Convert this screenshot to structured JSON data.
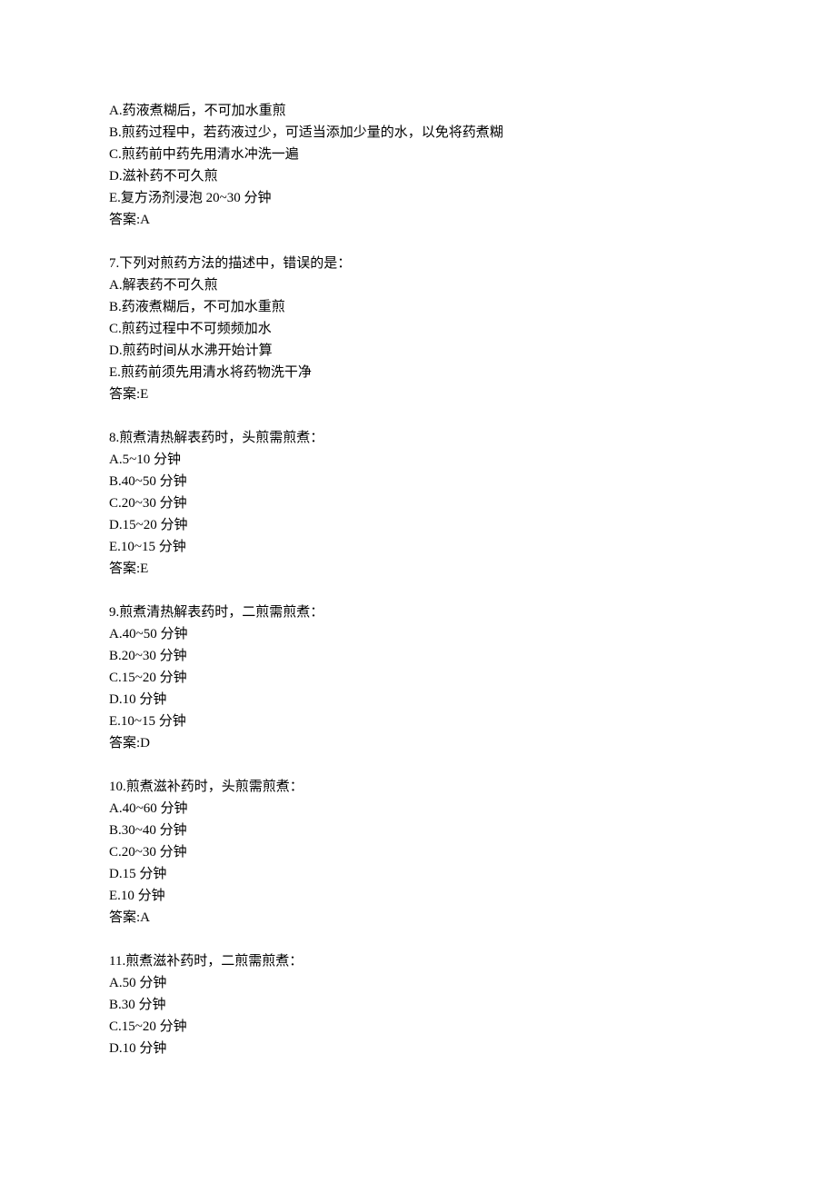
{
  "text_color": "#000000",
  "background_color": "#ffffff",
  "font_size": 15,
  "line_height": 24,
  "blocks": [
    {
      "lines": [
        "A.药液煮糊后，不可加水重煎",
        "B.煎药过程中，若药液过少，可适当添加少量的水，以免将药煮糊",
        "C.煎药前中药先用清水冲洗一遍",
        "D.滋补药不可久煎",
        "E.复方汤剂浸泡 20~30 分钟",
        "答案:A"
      ]
    },
    {
      "lines": [
        "7.下列对煎药方法的描述中，错误的是：",
        "A.解表药不可久煎",
        "B.药液煮糊后，不可加水重煎",
        "C.煎药过程中不可频频加水",
        "D.煎药时间从水沸开始计算",
        "E.煎药前须先用清水将药物洗干净",
        "答案:E"
      ]
    },
    {
      "lines": [
        "8.煎煮清热解表药时，头煎需煎煮：",
        "A.5~10 分钟",
        "B.40~50 分钟",
        "C.20~30 分钟",
        "D.15~20 分钟",
        "E.10~15 分钟",
        "答案:E"
      ]
    },
    {
      "lines": [
        "9.煎煮清热解表药时，二煎需煎煮：",
        "A.40~50 分钟",
        "B.20~30 分钟",
        "C.15~20 分钟",
        "D.10 分钟",
        "E.10~15 分钟",
        "答案:D"
      ]
    },
    {
      "lines": [
        "10.煎煮滋补药时，头煎需煎煮：",
        "A.40~60 分钟",
        "B.30~40 分钟",
        "C.20~30 分钟",
        "D.15 分钟",
        "E.10 分钟",
        "答案:A"
      ]
    },
    {
      "lines": [
        "11.煎煮滋补药时，二煎需煎煮：",
        "A.50 分钟",
        "B.30 分钟",
        "C.15~20 分钟",
        "D.10 分钟"
      ]
    }
  ]
}
